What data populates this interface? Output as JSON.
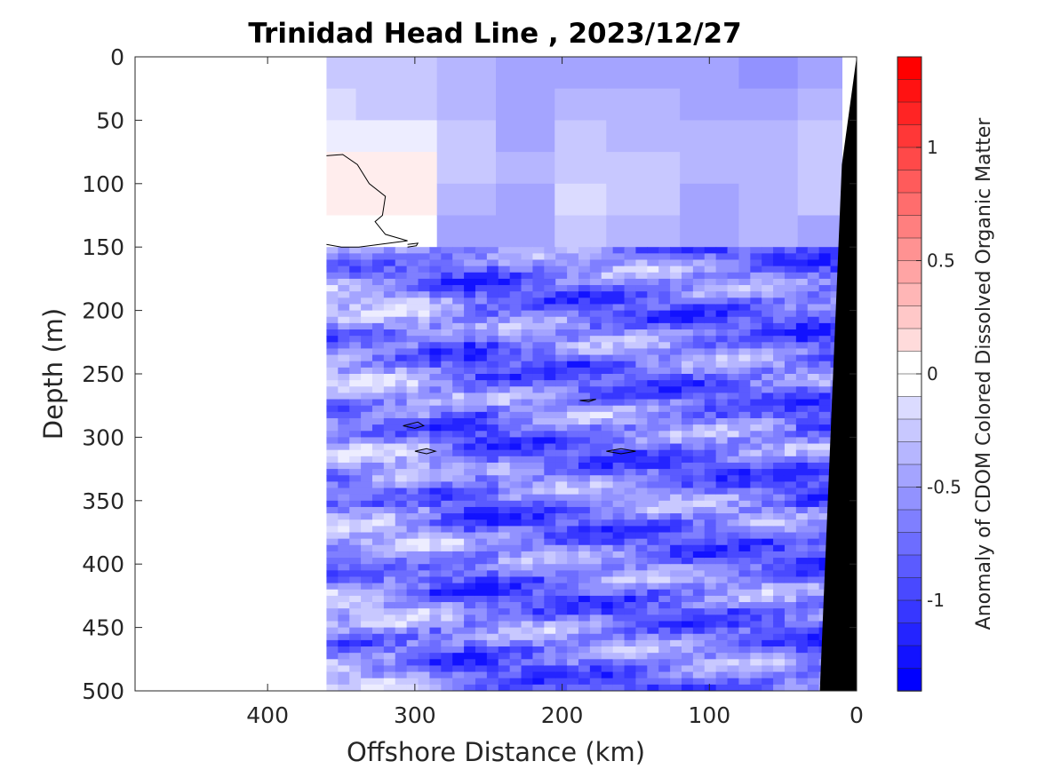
{
  "chart_data": {
    "type": "heatmap",
    "title": "Trinidad Head Line , 2023/12/27",
    "xlabel": "Offshore Distance (km)",
    "ylabel": "Depth (m)",
    "xlim": [
      490,
      0
    ],
    "ylim": [
      0,
      500
    ],
    "x_reversed": true,
    "y_reversed": true,
    "x_ticks": [
      400,
      300,
      200,
      100,
      0
    ],
    "x_tick_labels": [
      "400",
      "300",
      "200",
      "100",
      "0"
    ],
    "y_ticks": [
      0,
      50,
      100,
      150,
      200,
      250,
      300,
      350,
      400,
      450,
      500
    ],
    "y_tick_labels": [
      "0",
      "50",
      "100",
      "150",
      "200",
      "250",
      "300",
      "350",
      "400",
      "450",
      "500"
    ],
    "data_extent_x": [
      360,
      10
    ],
    "colorbar": {
      "label": "Anomaly of CDOM Colored Dissolved Organic Matter",
      "range": [
        -1.4,
        1.4
      ],
      "step": 0.1,
      "ticks": [
        -1,
        -0.5,
        0,
        0.5,
        1
      ],
      "tick_labels": [
        "-1",
        "-0.5",
        "0",
        "0.5",
        "1"
      ],
      "colormap": "blue-white-red",
      "negative_color": "#0000ff",
      "zero_color": "#ffffff",
      "positive_color": "#ff0000"
    },
    "bathymetry_color": "#000000",
    "bathymetry": [
      [
        0,
        0
      ],
      [
        10,
        85
      ],
      [
        25,
        500
      ]
    ],
    "upper_layer": {
      "depth_range": [
        0,
        150
      ],
      "zones": [
        {
          "x_range": [
            360,
            340
          ],
          "values": [
            -0.3,
            -0.25,
            -0.1,
            0.05,
            0.05,
            -0.05
          ]
        },
        {
          "x_range": [
            340,
            285
          ],
          "values": [
            -0.3,
            -0.3,
            -0.15,
            0.1,
            0.05,
            0.0
          ]
        },
        {
          "x_range": [
            285,
            245
          ],
          "values": [
            -0.45,
            -0.4,
            -0.35,
            -0.35,
            -0.45,
            -0.5
          ]
        },
        {
          "x_range": [
            245,
            205
          ],
          "values": [
            -0.55,
            -0.5,
            -0.5,
            -0.45,
            -0.5,
            -0.5
          ]
        },
        {
          "x_range": [
            205,
            170
          ],
          "values": [
            -0.5,
            -0.45,
            -0.35,
            -0.3,
            -0.25,
            -0.35
          ]
        },
        {
          "x_range": [
            170,
            120
          ],
          "values": [
            -0.5,
            -0.45,
            -0.4,
            -0.35,
            -0.3,
            -0.4
          ]
        },
        {
          "x_range": [
            120,
            80
          ],
          "values": [
            -0.55,
            -0.5,
            -0.45,
            -0.45,
            -0.5,
            -0.55
          ]
        },
        {
          "x_range": [
            80,
            40
          ],
          "values": [
            -0.6,
            -0.5,
            -0.45,
            -0.4,
            -0.4,
            -0.45
          ]
        },
        {
          "x_range": [
            40,
            10
          ],
          "values": [
            -0.55,
            -0.45,
            -0.35,
            -0.3,
            -0.35,
            -0.5
          ]
        }
      ]
    },
    "lower_layer": {
      "depth_range": [
        150,
        500
      ],
      "value_range": [
        -1.3,
        -0.1
      ],
      "pattern": "horizontal banding with mottled streaks"
    },
    "zero_contours": [
      {
        "points": [
          [
            360,
            78
          ],
          [
            349,
            77
          ],
          [
            339,
            85
          ],
          [
            331,
            100
          ],
          [
            320,
            110
          ],
          [
            322,
            125
          ],
          [
            327,
            130
          ],
          [
            320,
            140
          ],
          [
            305,
            145
          ],
          [
            338,
            150
          ],
          [
            350,
            150
          ],
          [
            360,
            148
          ]
        ]
      },
      {
        "points": [
          [
            305,
            148
          ],
          [
            298,
            147
          ],
          [
            299,
            149
          ],
          [
            305,
            150
          ]
        ]
      },
      {
        "points": [
          [
            308,
            291
          ],
          [
            298,
            288
          ],
          [
            294,
            291
          ],
          [
            300,
            293
          ],
          [
            308,
            291
          ]
        ]
      },
      {
        "points": [
          [
            300,
            311
          ],
          [
            292,
            309
          ],
          [
            286,
            311
          ],
          [
            292,
            313
          ],
          [
            300,
            311
          ]
        ]
      },
      {
        "points": [
          [
            188,
            271
          ],
          [
            177,
            270
          ],
          [
            182,
            272
          ],
          [
            188,
            271
          ]
        ]
      },
      {
        "points": [
          [
            170,
            311
          ],
          [
            160,
            309
          ],
          [
            150,
            311
          ],
          [
            160,
            313
          ],
          [
            170,
            311
          ]
        ]
      }
    ]
  }
}
